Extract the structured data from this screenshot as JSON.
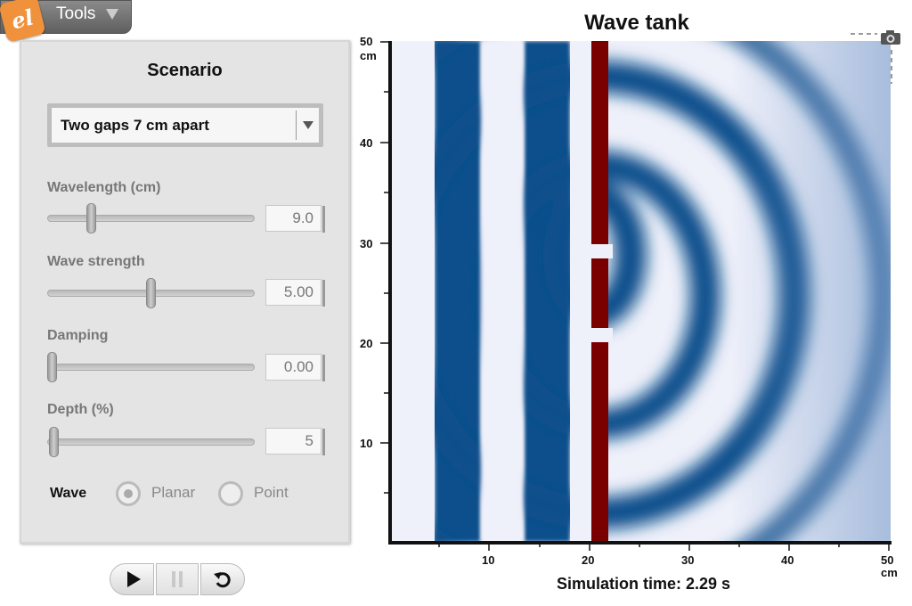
{
  "toolbar": {
    "logo_text": "el",
    "tools_label": "Tools"
  },
  "panel": {
    "title": "Scenario",
    "scenario_selected": "Two gaps 7 cm apart",
    "sliders": [
      {
        "label": "Wavelength (cm)",
        "value": "9.0",
        "fraction": 0.2
      },
      {
        "label": "Wave strength",
        "value": "5.00",
        "fraction": 0.5
      },
      {
        "label": "Damping",
        "value": "0.00",
        "fraction": 0.0
      },
      {
        "label": "Depth (%)",
        "value": "5",
        "fraction": 0.01
      }
    ],
    "wave": {
      "label": "Wave",
      "options": [
        {
          "label": "Planar",
          "selected": true
        },
        {
          "label": "Point",
          "selected": false
        }
      ]
    }
  },
  "controls": {
    "play": "play-icon",
    "pause": "pause-icon",
    "reset": "reset-icon"
  },
  "tank": {
    "title": "Wave tank",
    "y_ticks": [
      "50",
      "40",
      "30",
      "20",
      "10"
    ],
    "y_unit": "cm",
    "x_ticks": [
      "10",
      "20",
      "30",
      "40",
      "50"
    ],
    "x_unit": "cm",
    "simulation_time": "Simulation time: 2.29 s",
    "camera_icon": "camera-icon",
    "colors": {
      "wave_dark": "#0f4f8c",
      "wave_light": "#eef0fa",
      "barrier": "#7a0000"
    }
  }
}
